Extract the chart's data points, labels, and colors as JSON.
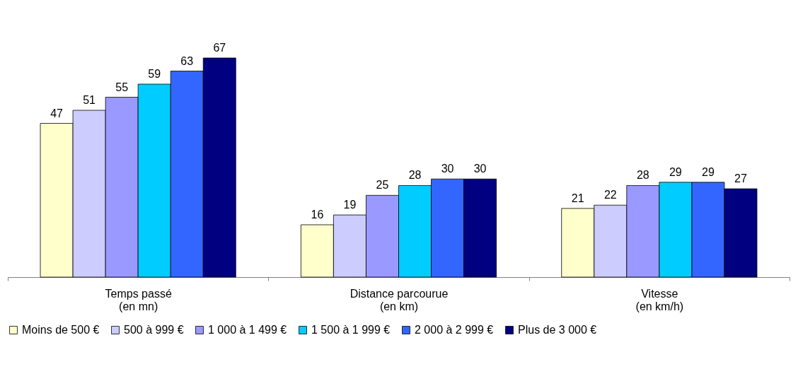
{
  "chart_data": {
    "type": "bar",
    "categories": [
      "Temps passé\n(en mn)",
      "Distance parcourue\n(en km)",
      "Vitesse\n(en km/h)"
    ],
    "series": [
      {
        "name": "Moins de 500 €",
        "color": "#ffffcc",
        "values": [
          47,
          16,
          21
        ]
      },
      {
        "name": "500 à 999 €",
        "color": "#ccccff",
        "values": [
          51,
          19,
          22
        ]
      },
      {
        "name": "1 000 à 1 499 €",
        "color": "#9999ff",
        "values": [
          55,
          25,
          28
        ]
      },
      {
        "name": "1 500 à 1 999 €",
        "color": "#00ccff",
        "values": [
          59,
          28,
          29
        ]
      },
      {
        "name": "2 000 à 2 999 €",
        "color": "#3366ff",
        "values": [
          63,
          30,
          29
        ]
      },
      {
        "name": "Plus de 3 000 €",
        "color": "#000080",
        "values": [
          67,
          30,
          27
        ]
      }
    ],
    "data_labels": true,
    "legend": "bottom",
    "grid": false
  }
}
